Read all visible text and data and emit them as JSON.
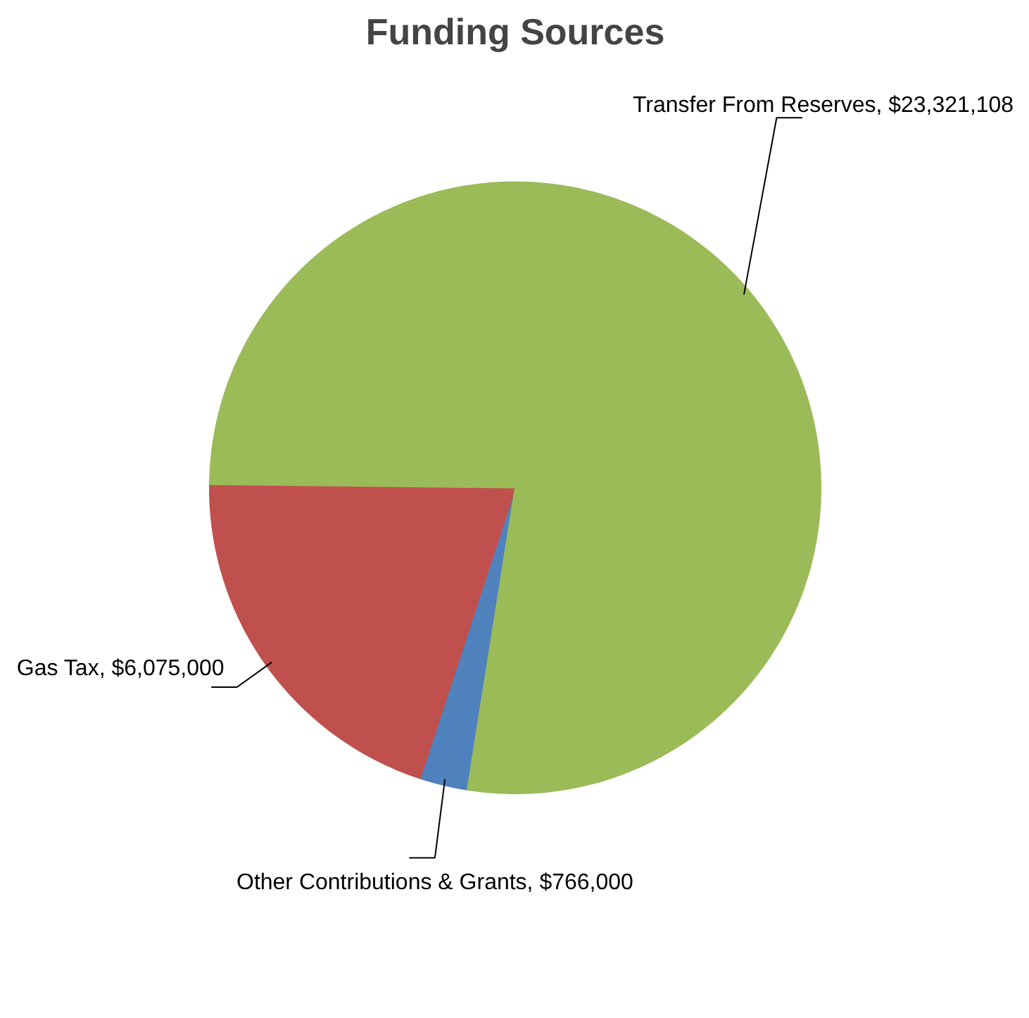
{
  "chart_data": {
    "type": "pie",
    "title": "Funding Sources",
    "categories": [
      "Other Contributions & Grants",
      "Gas Tax",
      "Transfer From Reserves"
    ],
    "values": [
      766000,
      6075000,
      23321108
    ],
    "value_labels": [
      "$766,000",
      "$6,075,000",
      "$23,321,108"
    ],
    "colors": [
      "#4f81bd",
      "#c0504d",
      "#9bbb59"
    ]
  }
}
